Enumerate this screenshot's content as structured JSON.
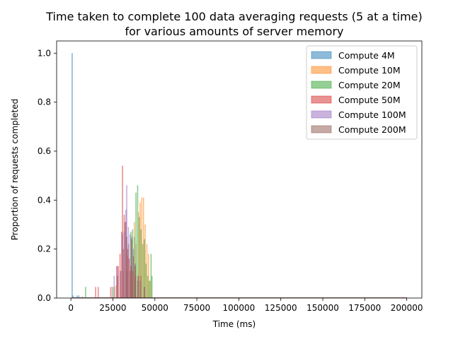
{
  "chart_data": {
    "type": "bar",
    "title": "Time taken to complete 100 data averaging requests (5 at a time)",
    "subtitle": "for various amounts of server memory",
    "xlabel": "Time (ms)",
    "ylabel": "Proportion of requests completed",
    "xlim": [
      -8500,
      209000
    ],
    "ylim": [
      0,
      1.05
    ],
    "x_ticks": [
      0,
      25000,
      50000,
      75000,
      100000,
      125000,
      150000,
      175000,
      200000
    ],
    "y_ticks": [
      0.0,
      0.2,
      0.4,
      0.6,
      0.8,
      1.0
    ],
    "x_tick_labels": [
      "0",
      "25000",
      "50000",
      "75000",
      "100000",
      "125000",
      "150000",
      "175000",
      "200000"
    ],
    "y_tick_labels": [
      "0.0",
      "0.2",
      "0.4",
      "0.6",
      "0.8",
      "1.0"
    ],
    "bin_width": 500,
    "legend_position": "top-right",
    "grid": false,
    "series": [
      {
        "name": "Compute 4M",
        "color": "#1f77b4",
        "bins": [
          [
            500,
            1.0
          ],
          [
            1000,
            0.01
          ],
          [
            3500,
            0.01
          ],
          [
            4500,
            0.01
          ],
          [
            6500,
            0.005
          ]
        ]
      },
      {
        "name": "Compute 10M",
        "color": "#ff7f0e",
        "bins": [
          [
            26500,
            0.05
          ],
          [
            31000,
            0.11
          ],
          [
            33500,
            0.17
          ],
          [
            36000,
            0.24
          ],
          [
            37500,
            0.31
          ],
          [
            38500,
            0.22
          ],
          [
            40000,
            0.35
          ],
          [
            41000,
            0.39
          ],
          [
            42000,
            0.41
          ],
          [
            43000,
            0.41
          ],
          [
            44000,
            0.3
          ],
          [
            45000,
            0.22
          ],
          [
            46000,
            0.18
          ],
          [
            47000,
            0.07
          ]
        ]
      },
      {
        "name": "Compute 20M",
        "color": "#2ca02c",
        "bins": [
          [
            8500,
            0.045
          ],
          [
            24500,
            0.045
          ],
          [
            33000,
            0.11
          ],
          [
            35500,
            0.27
          ],
          [
            36500,
            0.28
          ],
          [
            37500,
            0.25
          ],
          [
            38500,
            0.43
          ],
          [
            39500,
            0.46
          ],
          [
            40500,
            0.33
          ],
          [
            41500,
            0.28
          ],
          [
            42500,
            0.22
          ],
          [
            43500,
            0.24
          ],
          [
            44500,
            0.14
          ],
          [
            45500,
            0.09
          ],
          [
            46500,
            0.07
          ],
          [
            47500,
            0.18
          ],
          [
            48000,
            0.09
          ]
        ]
      },
      {
        "name": "Compute 50M",
        "color": "#d62728",
        "bins": [
          [
            14500,
            0.045
          ],
          [
            16000,
            0.045
          ],
          [
            23500,
            0.045
          ],
          [
            25500,
            0.045
          ],
          [
            27000,
            0.13
          ],
          [
            28000,
            0.13
          ],
          [
            29000,
            0.18
          ],
          [
            30000,
            0.27
          ],
          [
            30500,
            0.54
          ],
          [
            31500,
            0.34
          ],
          [
            32500,
            0.31
          ],
          [
            33500,
            0.2
          ],
          [
            34500,
            0.16
          ],
          [
            35500,
            0.13
          ],
          [
            36500,
            0.11
          ],
          [
            38000,
            0.09
          ],
          [
            40000,
            0.09
          ]
        ]
      },
      {
        "name": "Compute 100M",
        "color": "#9467bd",
        "bins": [
          [
            25500,
            0.09
          ],
          [
            27500,
            0.13
          ],
          [
            29000,
            0.11
          ],
          [
            30500,
            0.26
          ],
          [
            31500,
            0.27
          ],
          [
            32500,
            0.36
          ],
          [
            33000,
            0.46
          ],
          [
            34000,
            0.29
          ],
          [
            35000,
            0.26
          ],
          [
            36000,
            0.25
          ],
          [
            37000,
            0.2
          ],
          [
            38000,
            0.14
          ],
          [
            39500,
            0.09
          ],
          [
            41000,
            0.07
          ],
          [
            43500,
            0.045
          ]
        ]
      },
      {
        "name": "Compute 200M",
        "color": "#8c564b",
        "bins": [
          [
            27500,
            0.09
          ],
          [
            29500,
            0.11
          ],
          [
            31000,
            0.2
          ],
          [
            32000,
            0.31
          ],
          [
            33000,
            0.25
          ],
          [
            34000,
            0.22
          ],
          [
            35000,
            0.11
          ],
          [
            36000,
            0.24
          ],
          [
            37000,
            0.17
          ],
          [
            38000,
            0.13
          ],
          [
            39500,
            0.07
          ],
          [
            41500,
            0.09
          ],
          [
            43500,
            0.045
          ]
        ]
      }
    ]
  }
}
